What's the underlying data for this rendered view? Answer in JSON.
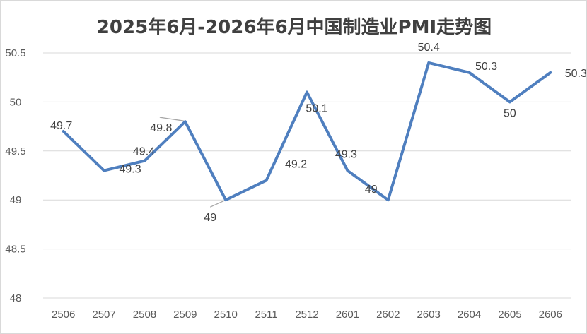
{
  "chart_data": {
    "type": "line",
    "title": "2025年6月-2026年6月中国制造业PMI走势图",
    "categories": [
      "2506",
      "2507",
      "2508",
      "2509",
      "2510",
      "2511",
      "2512",
      "2601",
      "2602",
      "2603",
      "2604",
      "2605",
      "2606"
    ],
    "series": [
      {
        "values": [
          49.7,
          49.3,
          49.4,
          49.8,
          49.0,
          49.2,
          50.1,
          49.3,
          49.0,
          50.4,
          50.3,
          50.0,
          50.3
        ]
      }
    ],
    "data_labels": [
      "49.7",
      "49.3",
      "49.4",
      "49.8",
      "49",
      "49.2",
      "50.1",
      "49.3",
      "49",
      "50.4",
      "50.3",
      "50",
      "50.3"
    ],
    "ylim": [
      48,
      50.5
    ],
    "yticks": [
      "48",
      "48.5",
      "49",
      "49.5",
      "50",
      "50.5"
    ],
    "grid": true,
    "legend": "none",
    "colors": {
      "line": "#4f7fbf",
      "grid": "#d9d9d9",
      "text": "#404040"
    }
  }
}
